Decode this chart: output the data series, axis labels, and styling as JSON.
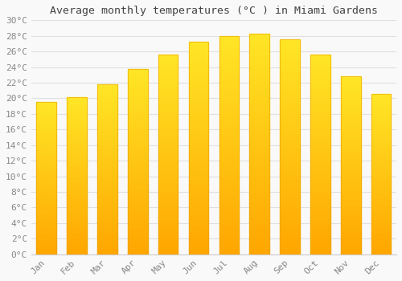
{
  "title": "Average monthly temperatures (°C ) in Miami Gardens",
  "months": [
    "Jan",
    "Feb",
    "Mar",
    "Apr",
    "May",
    "Jun",
    "Jul",
    "Aug",
    "Sep",
    "Oct",
    "Nov",
    "Dec"
  ],
  "values": [
    19.5,
    20.1,
    21.8,
    23.7,
    25.6,
    27.2,
    28.0,
    28.3,
    27.6,
    25.6,
    22.8,
    20.6
  ],
  "bar_color_top": "#FFBB33",
  "bar_color_bottom": "#FFA500",
  "background_color": "#F9F9F9",
  "grid_color": "#E0E0E0",
  "text_color": "#888888",
  "title_color": "#444444",
  "ylim": [
    0,
    30
  ],
  "ytick_step": 2,
  "title_fontsize": 9.5,
  "tick_fontsize": 8
}
